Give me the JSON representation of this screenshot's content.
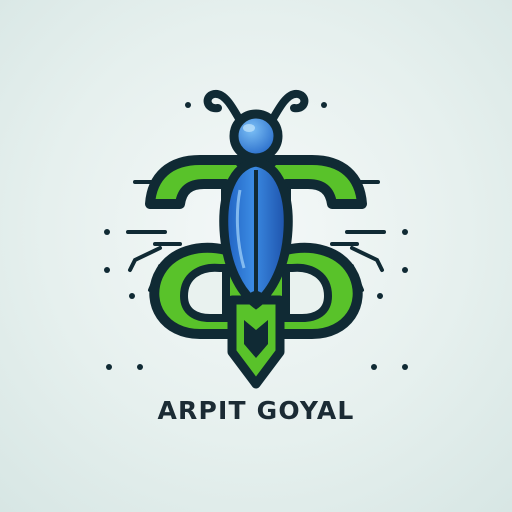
{
  "brand": {
    "name": "ARPIT GOYAL"
  },
  "logo": {
    "icon": "bug-monogram-icon",
    "colors": {
      "dark": "#102a34",
      "green": "#59c22a",
      "blue": "#2d77d6",
      "blue_light": "#6db2f2"
    }
  }
}
